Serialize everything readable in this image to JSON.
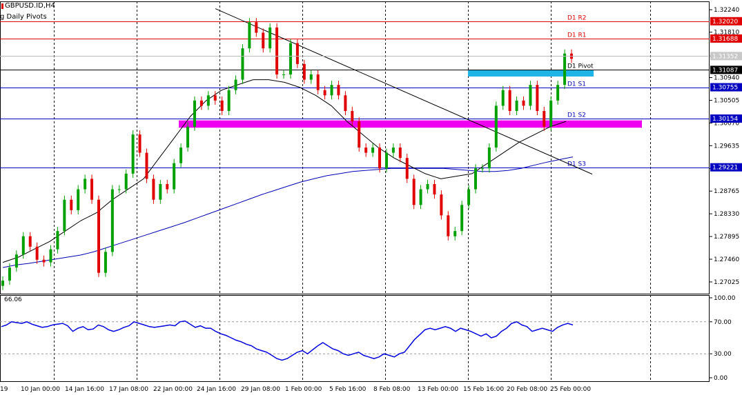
{
  "header": {
    "symbol": "GBPUSD.ID,H4",
    "indicator": "g Daily Pivots"
  },
  "rsi_panel": {
    "label": "66.06",
    "levels": [
      "100.00",
      "70.00",
      "30.00",
      "0.00"
    ]
  },
  "colors": {
    "bull": "#00a000",
    "bear": "#e00000",
    "resistance": "#e00000",
    "support": "#0000c0",
    "pivot": "#000000",
    "pivot_zone": "#1eb4e6",
    "s2_zone": "#f000f0",
    "ma_slow": "#0000b4",
    "ma_fast": "#000000",
    "rsi": "#0000e0"
  },
  "chart_data": {
    "type": "candlestick",
    "timeframe": "H4",
    "ylim": [
      1.268,
      1.324
    ],
    "y_ticks": [
      "1.32240",
      "1.31810",
      "1.31352",
      "1.30940",
      "1.30505",
      "1.30070",
      "1.29635",
      "1.29200",
      "1.28765",
      "1.28330",
      "1.27895",
      "1.27460",
      "1.27025"
    ],
    "x_ticks": [
      "19",
      "10 Jan 00:00",
      "14 Jan 16:00",
      "17 Jan 08:00",
      "22 Jan 00:00",
      "24 Jan 16:00",
      "29 Jan 08:00",
      "1 Feb 00:00",
      "5 Feb 16:00",
      "8 Feb 08:00",
      "13 Feb 00:00",
      "15 Feb 16:00",
      "20 Feb 08:00",
      "25 Feb 00:00"
    ],
    "levels": [
      {
        "name": "D1 R2",
        "price": 1.3202,
        "value_label": "1.32020",
        "kind": "resistance"
      },
      {
        "name": "D1 R1",
        "price": 1.31688,
        "value_label": "1.31688",
        "kind": "resistance"
      },
      {
        "name": "D1 Pivot",
        "price": 1.31087,
        "value_label": "1.31087",
        "kind": "pivot"
      },
      {
        "name": "D1 S1",
        "price": 1.30755,
        "value_label": "1.30755",
        "kind": "support"
      },
      {
        "name": "D1 S2",
        "price": 1.30154,
        "value_label": "1.30154",
        "kind": "support"
      },
      {
        "name": "D1 S3",
        "price": 1.29221,
        "value_label": "1.29221",
        "kind": "support"
      }
    ],
    "current_price": 1.31352,
    "zones": [
      {
        "name": "pivot zone",
        "from": 1.3096,
        "to": 1.3108
      },
      {
        "name": "S2 zone",
        "from": 1.2998,
        "to": 1.3012
      }
    ],
    "trendline": {
      "start": [
        0,
        1.3226
      ],
      "end": [
        1,
        1.2909
      ]
    },
    "close_series": [
      1.2705,
      1.273,
      1.2755,
      1.279,
      1.277,
      1.2745,
      1.274,
      1.2765,
      1.28,
      1.286,
      1.284,
      1.288,
      1.29,
      1.286,
      1.272,
      1.276,
      1.288,
      1.288,
      1.291,
      1.2985,
      1.295,
      1.29,
      1.286,
      1.289,
      1.288,
      1.293,
      1.296,
      1.3,
      1.305,
      1.304,
      1.306,
      1.305,
      1.303,
      1.307,
      1.309,
      1.315,
      1.32,
      1.318,
      1.315,
      1.319,
      1.31,
      1.31,
      1.316,
      1.312,
      1.309,
      1.31,
      1.307,
      1.306,
      1.308,
      1.306,
      1.303,
      1.301,
      1.296,
      1.295,
      1.296,
      1.292,
      1.295,
      1.296,
      1.294,
      1.29,
      1.285,
      1.288,
      1.289,
      1.287,
      1.283,
      1.279,
      1.28,
      1.285,
      1.288,
      1.292,
      1.292,
      1.296,
      1.304,
      1.307,
      1.303,
      1.305,
      1.304,
      1.308,
      1.303,
      1.3,
      1.305,
      1.308,
      1.314,
      1.313
    ],
    "ma_slow": [
      1.273,
      1.2735,
      1.2738,
      1.2742,
      1.2746,
      1.275,
      1.2754,
      1.276,
      1.2768,
      1.2776,
      1.2784,
      1.2792,
      1.28,
      1.2808,
      1.2816,
      1.2825,
      1.2834,
      1.2843,
      1.2852,
      1.2861,
      1.287,
      1.2878,
      1.2886,
      1.2894,
      1.29,
      1.2906,
      1.291,
      1.2914,
      1.2916,
      1.2918,
      1.292,
      1.292,
      1.292,
      1.292,
      1.292,
      1.2918,
      1.2916,
      1.2914,
      1.2914,
      1.2916,
      1.292,
      1.2926,
      1.2932,
      1.2937,
      1.2942
    ],
    "ma_fast": [
      1.274,
      1.275,
      1.2765,
      1.278,
      1.28,
      1.282,
      1.2835,
      1.286,
      1.288,
      1.29,
      1.294,
      1.298,
      1.302,
      1.305,
      1.307,
      1.308,
      1.309,
      1.309,
      1.3085,
      1.3075,
      1.306,
      1.304,
      1.301,
      1.2985,
      1.296,
      1.294,
      1.2925,
      1.291,
      1.29,
      1.2905,
      1.291,
      1.293,
      1.295,
      1.297,
      1.2985,
      1.3,
      1.301
    ],
    "rsi": [
      64,
      66,
      70,
      69,
      68,
      70,
      67,
      65,
      63,
      64,
      66,
      67,
      68,
      65,
      58,
      62,
      64,
      60,
      61,
      66,
      64,
      60,
      58,
      60,
      63,
      65,
      70,
      68,
      66,
      64,
      63,
      64,
      65,
      66,
      65,
      70,
      71,
      67,
      63,
      65,
      62,
      62,
      58,
      55,
      53,
      50,
      47,
      45,
      42,
      40,
      36,
      34,
      32,
      28,
      24,
      22,
      24,
      28,
      32,
      34,
      30,
      35,
      40,
      44,
      40,
      36,
      34,
      30,
      28,
      30,
      32,
      28,
      26,
      24,
      26,
      30,
      28,
      26,
      30,
      32,
      40,
      48,
      54,
      60,
      62,
      60,
      62,
      64,
      62,
      58,
      62,
      60,
      58,
      55,
      52,
      55,
      50,
      52,
      58,
      62,
      68,
      70,
      66,
      64,
      58,
      60,
      62,
      60,
      58,
      63,
      66,
      68,
      66
    ]
  }
}
